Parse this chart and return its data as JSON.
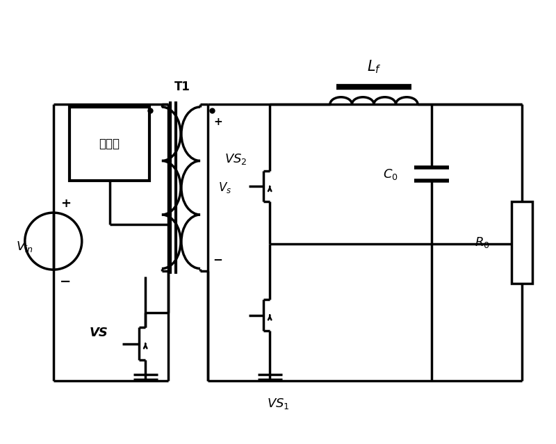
{
  "bg": "#ffffff",
  "lc": "#000000",
  "lw": 2.5,
  "fw": 8.0,
  "fh": 6.39,
  "dpi": 100,
  "labels": {
    "Vin": "$V_{in}$",
    "plus": "+",
    "minus": "−",
    "VS": "VS",
    "VS1": "$VS_1$",
    "VS2": "$VS_2$",
    "T1": "T1",
    "Vs": "$V_s$",
    "Lf": "$L_f$",
    "C0": "$C_0$",
    "R0": "$R_0$",
    "reset": "磁复位"
  },
  "xlim": [
    0,
    10
  ],
  "ylim": [
    0,
    8
  ]
}
